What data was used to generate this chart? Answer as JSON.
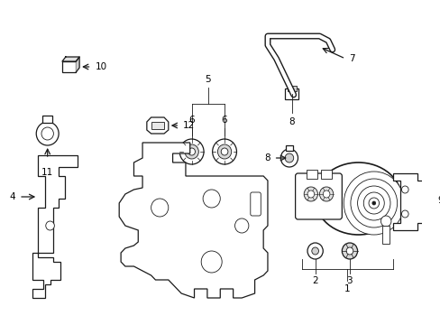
{
  "background_color": "#ffffff",
  "line_color": "#1a1a1a",
  "text_color": "#000000",
  "fig_width": 4.89,
  "fig_height": 3.6,
  "dpi": 100
}
